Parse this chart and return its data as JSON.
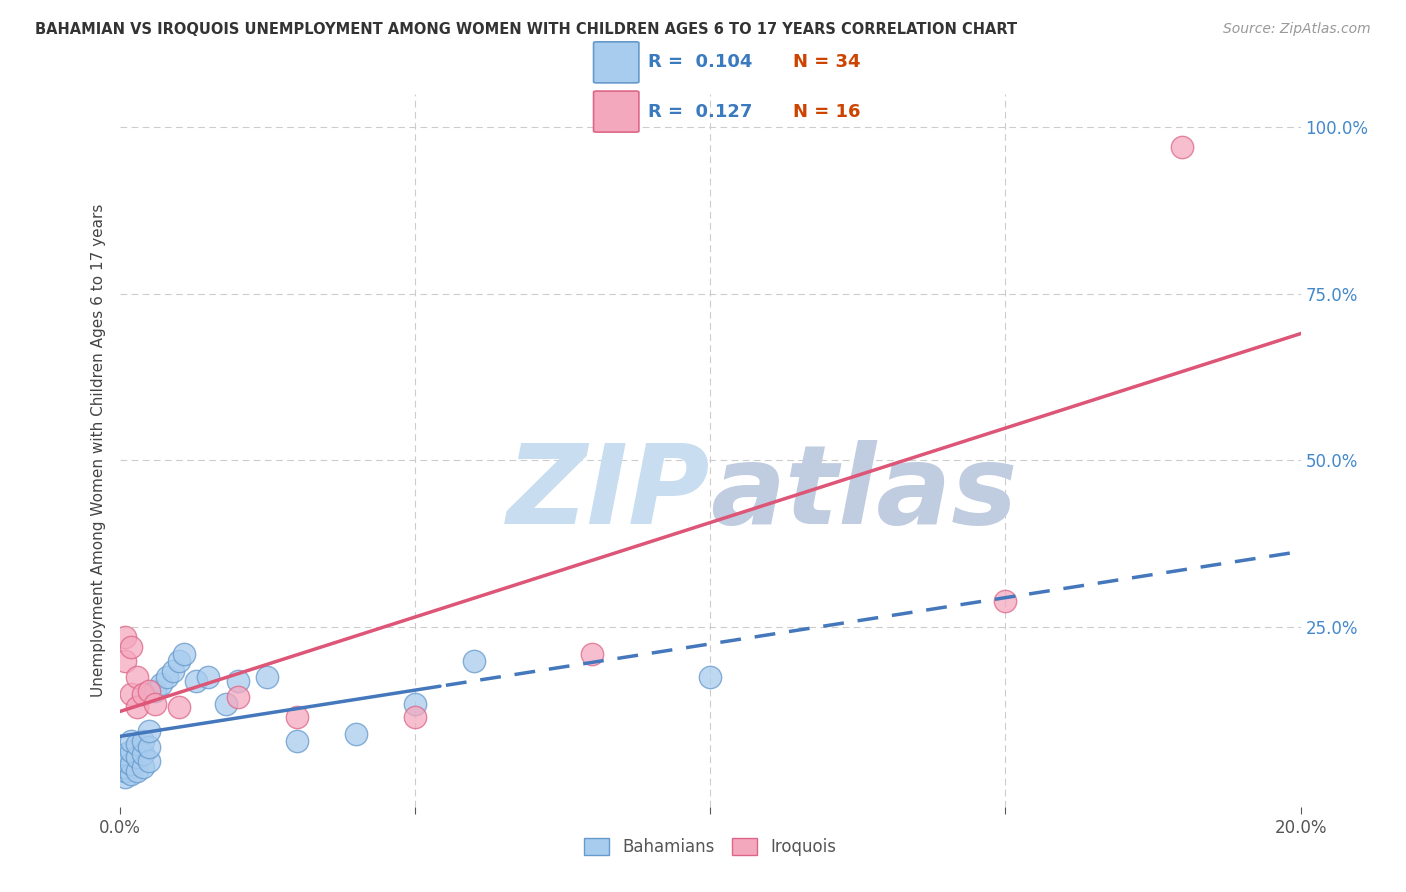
{
  "title": "BAHAMIAN VS IROQUOIS UNEMPLOYMENT AMONG WOMEN WITH CHILDREN AGES 6 TO 17 YEARS CORRELATION CHART",
  "source": "Source: ZipAtlas.com",
  "ylabel": "Unemployment Among Women with Children Ages 6 to 17 years",
  "xlim": [
    0.0,
    0.2
  ],
  "ylim": [
    -0.02,
    1.05
  ],
  "bahamians_color": "#a8ccee",
  "iroquois_color": "#f4a8be",
  "bahamians_edge_color": "#6699cc",
  "iroquois_edge_color": "#dd6688",
  "trend_blue_color": "#4477bb",
  "trend_pink_color": "#dd5577",
  "legend_R_blue": "0.104",
  "legend_N_blue": "34",
  "legend_R_pink": "0.127",
  "legend_N_pink": "16",
  "watermark_zip_color": "#c8ddf0",
  "watermark_atlas_color": "#c0cce0",
  "watermark_fontsize": 80,
  "grid_color": "#cccccc",
  "bahamians_x": [
    0.001,
    0.001,
    0.001,
    0.001,
    0.001,
    0.002,
    0.002,
    0.002,
    0.002,
    0.003,
    0.003,
    0.003,
    0.004,
    0.004,
    0.004,
    0.005,
    0.005,
    0.005,
    0.006,
    0.007,
    0.008,
    0.009,
    0.01,
    0.011,
    0.013,
    0.015,
    0.018,
    0.02,
    0.025,
    0.03,
    0.04,
    0.05,
    0.06,
    0.1
  ],
  "bahamians_y": [
    0.025,
    0.035,
    0.04,
    0.05,
    0.06,
    0.03,
    0.045,
    0.065,
    0.08,
    0.035,
    0.055,
    0.075,
    0.04,
    0.06,
    0.08,
    0.05,
    0.07,
    0.095,
    0.155,
    0.165,
    0.175,
    0.185,
    0.2,
    0.21,
    0.17,
    0.175,
    0.135,
    0.17,
    0.175,
    0.08,
    0.09,
    0.135,
    0.2,
    0.175
  ],
  "iroquois_x": [
    0.001,
    0.001,
    0.002,
    0.002,
    0.003,
    0.003,
    0.004,
    0.005,
    0.006,
    0.01,
    0.02,
    0.03,
    0.05,
    0.08,
    0.15,
    0.18
  ],
  "iroquois_y": [
    0.2,
    0.235,
    0.15,
    0.22,
    0.13,
    0.175,
    0.15,
    0.155,
    0.135,
    0.13,
    0.145,
    0.115,
    0.115,
    0.21,
    0.29,
    0.97
  ],
  "trend_blue_intercept": 0.105,
  "trend_blue_slope": 0.9,
  "trend_pink_intercept": 0.195,
  "trend_pink_slope": 0.8,
  "trend_solid_end": 0.055,
  "trend_dashed_end": 0.2,
  "bottom_legend_items": [
    "Bahamians",
    "Iroquois"
  ]
}
